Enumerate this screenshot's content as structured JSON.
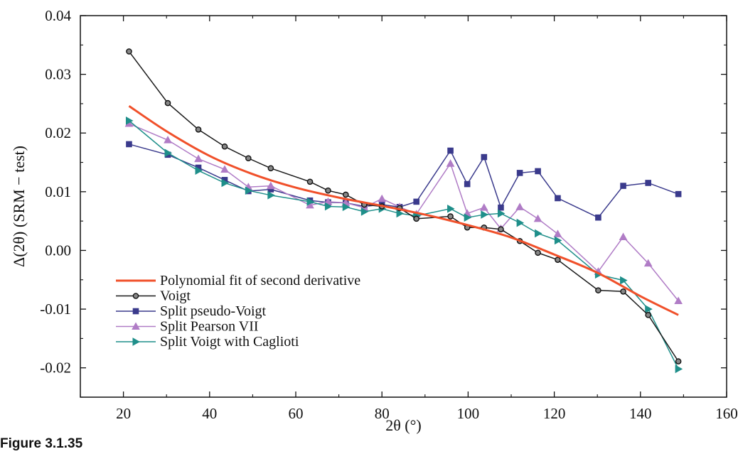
{
  "figure_label": "Figure 3.1.35",
  "chart_data": {
    "type": "line",
    "xlabel": "2θ (°)",
    "ylabel": "Δ(2θ) (SRM − test)",
    "xlim": [
      10,
      160
    ],
    "ylim": [
      -0.025,
      0.04
    ],
    "x_ticks": [
      20,
      40,
      60,
      80,
      100,
      120,
      140,
      160
    ],
    "y_ticks": [
      -0.02,
      -0.01,
      0.0,
      0.01,
      0.02,
      0.03,
      0.04
    ],
    "x_tick_labels": [
      "20",
      "40",
      "60",
      "80",
      "100",
      "120",
      "140",
      "160"
    ],
    "y_tick_labels": [
      "-0.02",
      "-0.01",
      "0.00",
      "0.01",
      "0.02",
      "0.03",
      "0.04"
    ],
    "grid": false,
    "legend_position": "bottom-left",
    "series": [
      {
        "name": "Polynomial fit of second derivative",
        "color": "#f0502a",
        "marker": "none",
        "x": [
          21.3,
          30,
          40,
          50,
          60,
          70,
          80,
          90,
          100,
          110,
          120,
          130,
          140,
          148.8
        ],
        "y": [
          0.0246,
          0.0203,
          0.0161,
          0.013,
          0.0107,
          0.009,
          0.0076,
          0.0061,
          0.0043,
          0.0022,
          -0.0007,
          -0.0038,
          -0.0078,
          -0.011
        ]
      },
      {
        "name": "Voigt",
        "color": "#1a1a1a",
        "marker": "circle",
        "x": [
          21.3,
          30.3,
          37.4,
          43.5,
          49.0,
          54.2,
          63.3,
          67.5,
          71.6,
          75.9,
          80.0,
          84.1,
          88.0,
          95.9,
          99.8,
          103.7,
          107.6,
          112.0,
          116.2,
          120.8,
          130.2,
          136.0,
          141.8,
          148.8
        ],
        "y": [
          0.0339,
          0.0251,
          0.0206,
          0.0177,
          0.0157,
          0.014,
          0.0117,
          0.0102,
          0.0095,
          0.0078,
          0.0075,
          0.0072,
          0.0054,
          0.0058,
          0.0039,
          0.0039,
          0.0036,
          0.0016,
          -0.0004,
          -0.0016,
          -0.0068,
          -0.007,
          -0.011,
          -0.0189
        ]
      },
      {
        "name": "Split pseudo-Voigt",
        "color": "#3a3a8c",
        "marker": "square",
        "x": [
          21.3,
          30.3,
          37.4,
          43.5,
          49.0,
          54.2,
          63.3,
          67.5,
          71.6,
          75.9,
          80.0,
          84.1,
          88.0,
          95.9,
          99.8,
          103.7,
          107.6,
          112.0,
          116.2,
          120.8,
          130.2,
          136.0,
          141.8,
          148.8
        ],
        "y": [
          0.0181,
          0.0163,
          0.0141,
          0.012,
          0.0101,
          0.0104,
          0.0085,
          0.0082,
          0.0081,
          0.0075,
          0.0078,
          0.0074,
          0.0083,
          0.017,
          0.0113,
          0.0159,
          0.0073,
          0.0132,
          0.0135,
          0.0089,
          0.0056,
          0.011,
          0.0115,
          0.0096
        ]
      },
      {
        "name": "Split Pearson VII",
        "color": "#b07cc6",
        "marker": "triangle-up",
        "x": [
          21.3,
          30.3,
          37.4,
          43.5,
          49.0,
          54.2,
          63.3,
          67.5,
          71.6,
          75.9,
          80.0,
          84.1,
          88.0,
          95.9,
          99.8,
          103.7,
          107.6,
          112.0,
          116.2,
          120.8,
          130.2,
          136.0,
          141.8,
          148.8
        ],
        "y": [
          0.0216,
          0.0188,
          0.0156,
          0.0138,
          0.0108,
          0.011,
          0.0077,
          0.0083,
          0.0081,
          0.0073,
          0.0088,
          0.0074,
          0.0062,
          0.0148,
          0.0063,
          0.0073,
          0.0037,
          0.0074,
          0.0054,
          0.0028,
          -0.0036,
          0.0023,
          -0.0022,
          -0.0086
        ]
      },
      {
        "name": "Split Voigt with Caglioti",
        "color": "#1f8f8a",
        "marker": "triangle-right",
        "x": [
          21.3,
          30.3,
          37.4,
          43.5,
          49.0,
          54.2,
          63.3,
          67.5,
          71.6,
          75.9,
          80.0,
          84.1,
          88.0,
          95.9,
          99.8,
          103.7,
          107.6,
          112.0,
          116.2,
          120.8,
          130.2,
          136.0,
          141.8,
          148.8
        ],
        "y": [
          0.0221,
          0.0166,
          0.0136,
          0.0115,
          0.0102,
          0.0094,
          0.0083,
          0.0075,
          0.0074,
          0.0066,
          0.0071,
          0.0063,
          0.0059,
          0.0071,
          0.0056,
          0.0061,
          0.0063,
          0.0047,
          0.0029,
          0.0017,
          -0.0041,
          -0.0051,
          -0.01,
          -0.0202
        ]
      }
    ]
  }
}
